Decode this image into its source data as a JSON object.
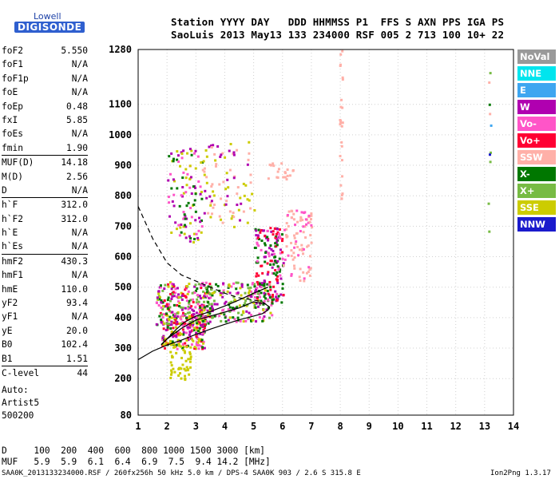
{
  "logo": {
    "top": "Lowell",
    "bottom": "DIGISONDE"
  },
  "header": {
    "row1": "Station YYYY DAY   DDD HHMMSS P1  FFS S AXN PPS IGA PS",
    "row2": "SaoLuis 2013 May13 133 234000 RSF 005 2 713 100 10+ 22"
  },
  "params": [
    {
      "name": "foF2",
      "value": "5.550"
    },
    {
      "name": "foF1",
      "value": "N/A"
    },
    {
      "name": "foF1p",
      "value": "N/A"
    },
    {
      "name": "foE",
      "value": "N/A"
    },
    {
      "name": "foEp",
      "value": "0.48"
    },
    {
      "name": "fxI",
      "value": "5.85"
    },
    {
      "name": "foEs",
      "value": "N/A"
    },
    {
      "name": "fmin",
      "value": "1.90"
    },
    {
      "name": "MUF(D)",
      "value": "14.18",
      "sep": true
    },
    {
      "name": "M(D)",
      "value": "2.56"
    },
    {
      "name": "D",
      "value": "N/A"
    },
    {
      "name": "h`F",
      "value": "312.0",
      "sep": true
    },
    {
      "name": "h`F2",
      "value": "312.0"
    },
    {
      "name": "h`E",
      "value": "N/A"
    },
    {
      "name": "h`Es",
      "value": "N/A"
    },
    {
      "name": "hmF2",
      "value": "430.3",
      "sep": true
    },
    {
      "name": "hmF1",
      "value": "N/A"
    },
    {
      "name": "hmE",
      "value": "110.0"
    },
    {
      "name": "yF2",
      "value": "93.4"
    },
    {
      "name": "yF1",
      "value": "N/A"
    },
    {
      "name": "yE",
      "value": "20.0"
    },
    {
      "name": "B0",
      "value": "102.4"
    },
    {
      "name": "B1",
      "value": "1.51"
    },
    {
      "name": "C-level",
      "value": "44",
      "sep": true
    }
  ],
  "auto": {
    "label": "Auto:",
    "artist": "Artist5",
    "version": "500200"
  },
  "footer": {
    "d_row": "D     100  200  400  600  800 1000 1500 3000 [km]",
    "muf_row": "MUF   5.9  5.9  6.1  6.4  6.9  7.5  9.4 14.2 [MHz]",
    "file_info": "SAA0K_2013133234000.RSF / 260fx256h 50 kHz 5.0 km / DPS-4 SAA0K 903 / 2.6 S 315.8 E",
    "version": "Ion2Png 1.3.17"
  },
  "legend": [
    {
      "label": "NoVal",
      "color": "#999999"
    },
    {
      "label": "NNE",
      "color": "#00e5ee"
    },
    {
      "label": "E",
      "color": "#3ea6f0"
    },
    {
      "label": "W",
      "color": "#b000b0"
    },
    {
      "label": "Vo-",
      "color": "#ff55c8"
    },
    {
      "label": "Vo+",
      "color": "#ff0033"
    },
    {
      "label": "SSW",
      "color": "#ffb0a8"
    },
    {
      "label": "X-",
      "color": "#007700"
    },
    {
      "label": "X+",
      "color": "#77bb44"
    },
    {
      "label": "SSE",
      "color": "#cccc00"
    },
    {
      "label": "NNW",
      "color": "#1a1acc"
    }
  ],
  "chart_data": {
    "type": "scatter",
    "x_ticks": [
      1,
      2,
      3,
      4,
      5,
      6,
      7,
      8,
      9,
      10,
      11,
      12,
      13,
      14
    ],
    "y_ticks": [
      80,
      200,
      300,
      400,
      500,
      600,
      700,
      800,
      900,
      1000,
      1100,
      1280
    ],
    "xlim": [
      1,
      14
    ],
    "ylim": [
      80,
      1280
    ],
    "grid": true,
    "series": [
      {
        "values": [
          [
            1.0,
            262
          ],
          [
            1.5,
            290
          ],
          [
            2.0,
            310
          ],
          [
            2.5,
            326
          ],
          [
            3.0,
            345
          ],
          [
            3.5,
            362
          ],
          [
            4.0,
            378
          ],
          [
            4.5,
            393
          ],
          [
            5.0,
            405
          ],
          [
            5.3,
            413
          ],
          [
            5.5,
            425
          ],
          [
            5.55,
            435
          ],
          [
            5.4,
            445
          ],
          [
            5.0,
            452
          ],
          [
            4.5,
            432
          ],
          [
            4.0,
            418
          ],
          [
            3.5,
            405
          ],
          [
            3.0,
            392
          ],
          [
            2.5,
            365
          ],
          [
            2.0,
            330
          ],
          [
            1.8,
            312
          ]
        ]
      },
      {
        "values": [
          [
            1.0,
            765
          ],
          [
            1.5,
            660
          ],
          [
            2.0,
            580
          ],
          [
            2.5,
            540
          ],
          [
            3.0,
            520
          ],
          [
            3.5,
            500
          ],
          [
            4.0,
            480
          ],
          [
            4.5,
            465
          ],
          [
            5.0,
            458
          ],
          [
            5.3,
            452
          ],
          [
            5.5,
            440
          ]
        ]
      },
      {
        "values": [
          [
            1.8,
            310
          ],
          [
            2.0,
            330
          ],
          [
            2.3,
            360
          ],
          [
            2.6,
            385
          ],
          [
            3.0,
            405
          ],
          [
            3.5,
            420
          ],
          [
            4.0,
            438
          ],
          [
            4.5,
            458
          ],
          [
            5.0,
            480
          ],
          [
            5.5,
            500
          ]
        ]
      }
    ],
    "clusters": [
      {
        "x": [
          1.8,
          3.3
        ],
        "y": [
          300,
          420
        ],
        "n": 220,
        "colors": [
          "#cccc00",
          "#cccc00",
          "#b000b0",
          "#ff55c8",
          "#007700",
          "#ff0033"
        ]
      },
      {
        "x": [
          1.6,
          3.5
        ],
        "y": [
          380,
          520
        ],
        "n": 220,
        "colors": [
          "#b000b0",
          "#ff55c8",
          "#007700",
          "#ff0033",
          "#cccc00",
          "#77bb44"
        ]
      },
      {
        "x": [
          3.2,
          5.6
        ],
        "y": [
          390,
          520
        ],
        "n": 200,
        "colors": [
          "#007700",
          "#77bb44",
          "#cccc00",
          "#ff55c8",
          "#b000b0"
        ]
      },
      {
        "x": [
          5.0,
          6.0
        ],
        "y": [
          450,
          700
        ],
        "n": 180,
        "colors": [
          "#b000b0",
          "#ff55c8",
          "#ff0033",
          "#007700"
        ]
      },
      {
        "x": [
          6.0,
          7.0
        ],
        "y": [
          520,
          760
        ],
        "n": 90,
        "colors": [
          "#ffb0a8",
          "#ffb0a8",
          "#ff55c8"
        ]
      },
      {
        "x": [
          2.0,
          3.2
        ],
        "y": [
          650,
          960
        ],
        "n": 110,
        "colors": [
          "#b000b0",
          "#ff55c8",
          "#cccc00",
          "#007700"
        ]
      },
      {
        "x": [
          3.2,
          5.0
        ],
        "y": [
          700,
          980
        ],
        "n": 90,
        "colors": [
          "#cccc00",
          "#b000b0",
          "#ffb0a8"
        ]
      },
      {
        "x": [
          2.0,
          2.8
        ],
        "y": [
          200,
          330
        ],
        "n": 50,
        "colors": [
          "#cccc00"
        ]
      },
      {
        "x": [
          5.4,
          6.4
        ],
        "y": [
          850,
          910
        ],
        "n": 20,
        "colors": [
          "#ffb0a8"
        ]
      },
      {
        "x": [
          7.95,
          8.05
        ],
        "y": [
          780,
          1280
        ],
        "n": 25,
        "colors": [
          "#ffb0a8"
        ]
      },
      {
        "x": [
          13.1,
          13.2
        ],
        "y": [
          550,
          1280
        ],
        "n": 10,
        "colors": [
          "#ffb0a8",
          "#3ea6f0",
          "#1a1acc",
          "#77bb44",
          "#007700"
        ]
      }
    ]
  }
}
